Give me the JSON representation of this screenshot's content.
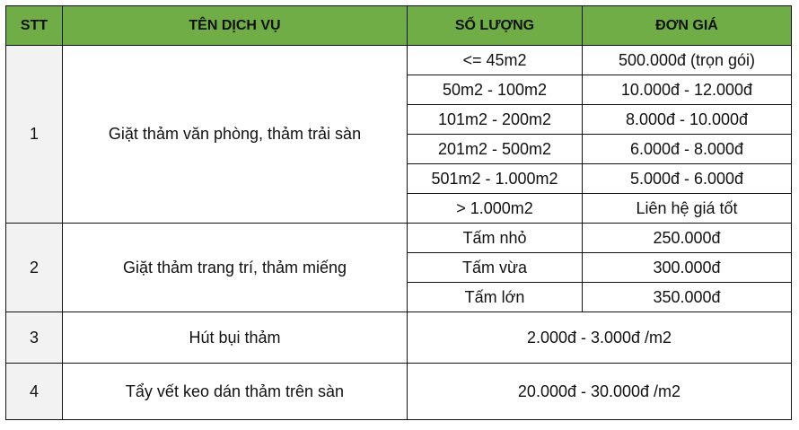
{
  "header": {
    "stt": "STT",
    "service": "TÊN DỊCH VỤ",
    "quantity": "SỐ LƯỢNG",
    "price": "ĐƠN GIÁ"
  },
  "colors": {
    "header_bg": "#70ad47",
    "stt_bg": "#f2f2f2"
  },
  "rows": [
    {
      "stt": "1",
      "service": "Giặt thảm văn phòng, thảm trải sàn",
      "tiers": [
        {
          "quantity": "<= 45m2",
          "price": "500.000đ (trọn gói)"
        },
        {
          "quantity": "50m2 - 100m2",
          "price": "10.000đ - 12.000đ"
        },
        {
          "quantity": "101m2 - 200m2",
          "price": "8.000đ - 10.000đ"
        },
        {
          "quantity": "201m2 - 500m2",
          "price": "6.000đ - 8.000đ"
        },
        {
          "quantity": "501m2 - 1.000m2",
          "price": "5.000đ - 6.000đ"
        },
        {
          "quantity": "> 1.000m2",
          "price": "Liên hệ giá tốt"
        }
      ]
    },
    {
      "stt": "2",
      "service": "Giặt thảm trang trí, thảm miếng",
      "tiers": [
        {
          "quantity": "Tấm nhỏ",
          "price": "250.000đ"
        },
        {
          "quantity": "Tấm vừa",
          "price": "300.000đ"
        },
        {
          "quantity": "Tấm lớn",
          "price": "350.000đ"
        }
      ]
    },
    {
      "stt": "3",
      "service": "Hút bụi thảm",
      "price": "2.000đ - 3.000đ /m2"
    },
    {
      "stt": "4",
      "service": "Tẩy vết keo dán thảm trên sàn",
      "price": "20.000đ - 30.000đ /m2"
    }
  ]
}
